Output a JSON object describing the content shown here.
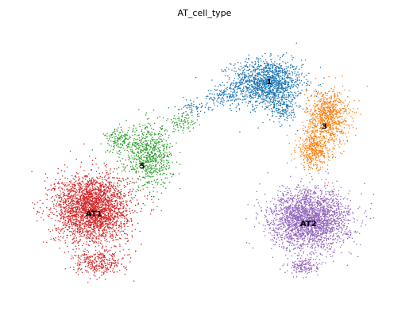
{
  "chart_data": {
    "type": "scatter",
    "title": "AT_cell_type",
    "xlabel": "",
    "ylabel": "",
    "grid": false,
    "axes_visible": false,
    "legend": "on data",
    "xlim": [
      0,
      100
    ],
    "ylim": [
      0,
      100
    ],
    "series": [
      {
        "name": "1",
        "color": "#1f77b4",
        "label_pos": [
          67.5,
          79.5
        ],
        "clusters": [
          {
            "center": [
              67.0,
              79.0
            ],
            "spread": [
              9.0,
              7.5
            ],
            "n": 1400
          },
          {
            "center": [
              71.5,
              70.0
            ],
            "spread": [
              3.5,
              5.0
            ],
            "n": 150
          },
          {
            "center": [
              55.0,
              74.0
            ],
            "spread": [
              5.0,
              3.0
            ],
            "n": 120
          },
          {
            "center": [
              46.0,
              70.5
            ],
            "spread": [
              4.0,
              2.5
            ],
            "n": 60
          }
        ]
      },
      {
        "name": "3",
        "color": "#ff7f0e",
        "label_pos": [
          83.0,
          63.5
        ],
        "clusters": [
          {
            "center": [
              84.0,
              67.0
            ],
            "spread": [
              5.5,
              9.0
            ],
            "n": 800
          },
          {
            "center": [
              80.0,
              55.0
            ],
            "spread": [
              4.5,
              6.0
            ],
            "n": 400
          }
        ]
      },
      {
        "name": "5",
        "color": "#2ca02c",
        "label_pos": [
          32.0,
          49.5
        ],
        "clusters": [
          {
            "center": [
              34.0,
              53.0
            ],
            "spread": [
              6.0,
              10.0
            ],
            "n": 700
          },
          {
            "center": [
              26.0,
              58.5
            ],
            "spread": [
              4.0,
              4.0
            ],
            "n": 150
          },
          {
            "center": [
              43.5,
              65.0
            ],
            "spread": [
              4.0,
              3.0
            ],
            "n": 80
          }
        ]
      },
      {
        "name": "AT1",
        "color": "#d62728",
        "label_pos": [
          18.5,
          32.5
        ],
        "clusters": [
          {
            "center": [
              18.0,
              34.5
            ],
            "spread": [
              9.5,
              11.0
            ],
            "n": 2600
          },
          {
            "center": [
              20.0,
              15.0
            ],
            "spread": [
              6.5,
              4.0
            ],
            "n": 300
          }
        ]
      },
      {
        "name": "AT2",
        "color": "#9467bd",
        "label_pos": [
          78.5,
          29.0
        ],
        "clusters": [
          {
            "center": [
              79.0,
              30.5
            ],
            "spread": [
              10.0,
              9.5
            ],
            "n": 2400
          },
          {
            "center": [
              77.5,
              14.0
            ],
            "spread": [
              4.0,
              3.0
            ],
            "n": 150
          }
        ]
      }
    ]
  }
}
